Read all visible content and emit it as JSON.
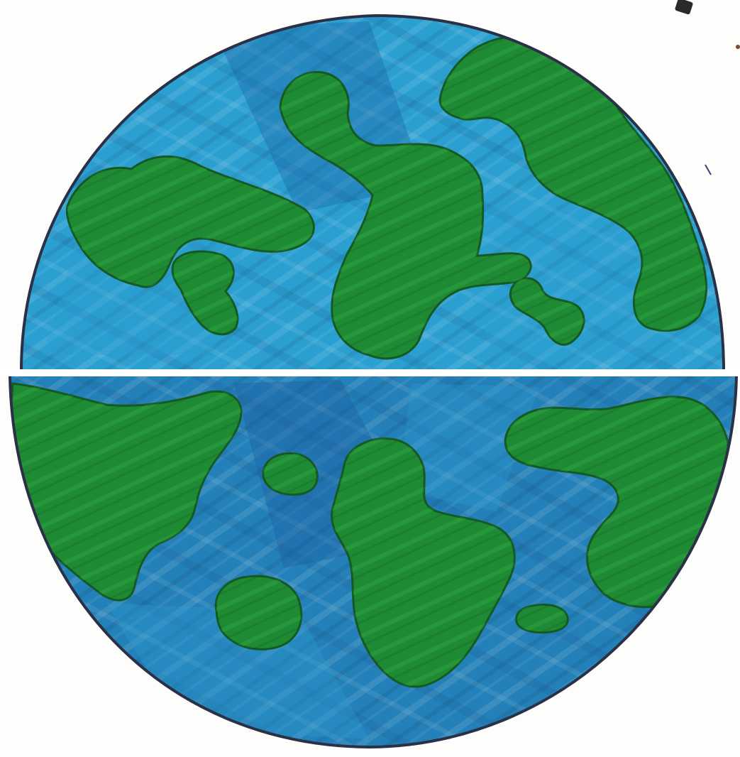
{
  "image": {
    "subject": "earth-drawing",
    "colors": {
      "paper": "#fdfdfc",
      "ocean_light": "#2b9fd0",
      "ocean_mid": "#2480b8",
      "ocean_dark": "#1b5fa0",
      "land": "#1f8a34",
      "land_light": "#36b04a",
      "land_outline": "#145a22",
      "globe_outline": "#2a3146",
      "seam": "#ffffff"
    }
  }
}
